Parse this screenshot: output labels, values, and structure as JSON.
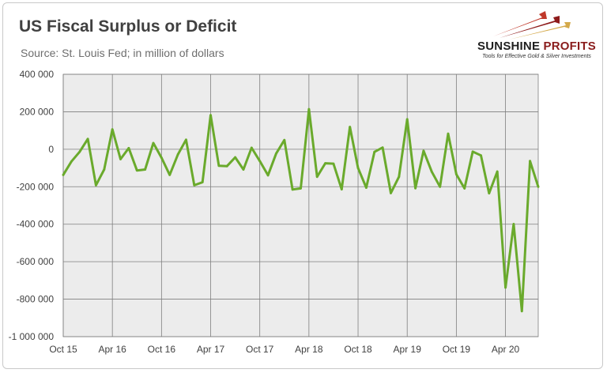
{
  "title": "US Fiscal Surplus or Deficit",
  "subtitle": "Source: St. Louis Fed; in million of dollars",
  "logo": {
    "name_part1": "SUNSHINE",
    "name_part2": "PROFITS",
    "tagline": "Tools for Effective Gold & Silver Investments"
  },
  "colors": {
    "line": "#6aaa2c",
    "plot_bg": "#ececec",
    "grid": "#7f7f7f"
  },
  "chart_data": {
    "type": "line",
    "title": "US Fiscal Surplus or Deficit",
    "subtitle": "Source: St. Louis Fed; in million of dollars",
    "xlabel": "",
    "ylabel": "",
    "ylim": [
      -1000000,
      400000
    ],
    "grid": true,
    "y_ticks": [
      "400 000",
      "200 000",
      "0",
      "-200 000",
      "-400 000",
      "-600 000",
      "-800 000",
      "-1 000 000"
    ],
    "x_ticks": [
      "Oct 15",
      "Apr 16",
      "Oct 16",
      "Apr 17",
      "Oct 17",
      "Apr 18",
      "Oct 18",
      "Apr 19",
      "Oct 19",
      "Apr 20"
    ],
    "x": [
      "Oct 15",
      "Nov 15",
      "Dec 15",
      "Jan 16",
      "Feb 16",
      "Mar 16",
      "Apr 16",
      "May 16",
      "Jun 16",
      "Jul 16",
      "Aug 16",
      "Sep 16",
      "Oct 16",
      "Nov 16",
      "Dec 16",
      "Jan 17",
      "Feb 17",
      "Mar 17",
      "Apr 17",
      "May 17",
      "Jun 17",
      "Jul 17",
      "Aug 17",
      "Sep 17",
      "Oct 17",
      "Nov 17",
      "Dec 17",
      "Jan 18",
      "Feb 18",
      "Mar 18",
      "Apr 18",
      "May 18",
      "Jun 18",
      "Jul 18",
      "Aug 18",
      "Sep 18",
      "Oct 18",
      "Nov 18",
      "Dec 18",
      "Jan 19",
      "Feb 19",
      "Mar 19",
      "Apr 19",
      "May 19",
      "Jun 19",
      "Jul 19",
      "Aug 19",
      "Sep 19",
      "Oct 19",
      "Nov 19",
      "Dec 19",
      "Jan 20",
      "Feb 20",
      "Mar 20",
      "Apr 20",
      "May 20",
      "Jun 20",
      "Jul 20",
      "Aug 20"
    ],
    "series": [
      {
        "values": [
          -137000,
          -65000,
          -14000,
          55000,
          -192000,
          -108000,
          106000,
          -53000,
          6000,
          -113000,
          -108000,
          33000,
          -45000,
          -137000,
          -28000,
          51000,
          -192000,
          -176000,
          182000,
          -88000,
          -90000,
          -43000,
          -108000,
          8000,
          -63000,
          -139000,
          -23000,
          49000,
          -215000,
          -209000,
          214000,
          -147000,
          -75000,
          -77000,
          -214000,
          119000,
          -100000,
          -205000,
          -14000,
          9000,
          -234000,
          -147000,
          160000,
          -208000,
          -8000,
          -120000,
          -200000,
          83000,
          -134000,
          -209000,
          -13000,
          -33000,
          -235000,
          -119000,
          -738000,
          -399000,
          -864000,
          -63000,
          -200000
        ]
      }
    ]
  }
}
